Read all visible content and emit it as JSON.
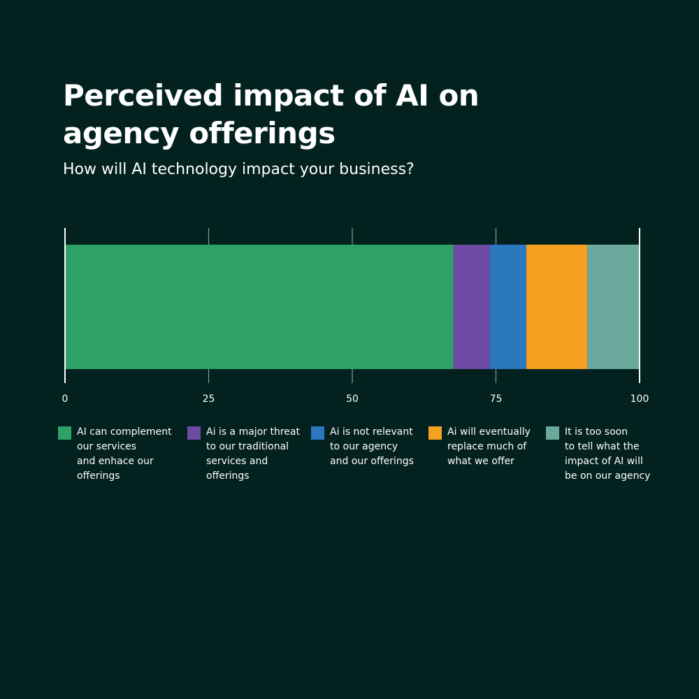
{
  "chart_data": {
    "type": "bar",
    "orientation": "horizontal",
    "stacked": true,
    "title": "Perceived impact of AI on agency offerings",
    "subtitle": "How will AI technology impact your business?",
    "xlim": [
      0,
      100
    ],
    "xticks": [
      0,
      25,
      50,
      75,
      100
    ],
    "grid": true,
    "legend_placement": "bottom",
    "series": [
      {
        "name": "AI can complement our services and enhace our offerings",
        "value": 67.6,
        "color": "#2ea266"
      },
      {
        "name": "Ai is a major threat to our traditional services and offerings",
        "value": 6.3,
        "color": "#6e4aa4"
      },
      {
        "name": "Ai is not relevant to our agency and our offerings",
        "value": 6.4,
        "color": "#2b78be"
      },
      {
        "name": "Ai will eventually replace much of what we offer",
        "value": 10.6,
        "color": "#f5a020"
      },
      {
        "name": "It is too soon to tell what the impact of AI will be on our agency",
        "value": 9.1,
        "color": "#6aa99b"
      }
    ],
    "legend_lines": [
      "AI can complement\nour services\nand enhace our\nofferings",
      "Ai is a major threat\nto our traditional\nservices and\nofferings",
      "Ai is not relevant\nto our agency\nand our offerings",
      "Ai will eventually\nreplace much of\nwhat we offer",
      "It is too soon\nto tell what the\nimpact of AI will\nbe on our agency"
    ]
  },
  "colors": {
    "background": "#03221f",
    "gridline": "#8a9a97",
    "axis": "#ffffff"
  }
}
